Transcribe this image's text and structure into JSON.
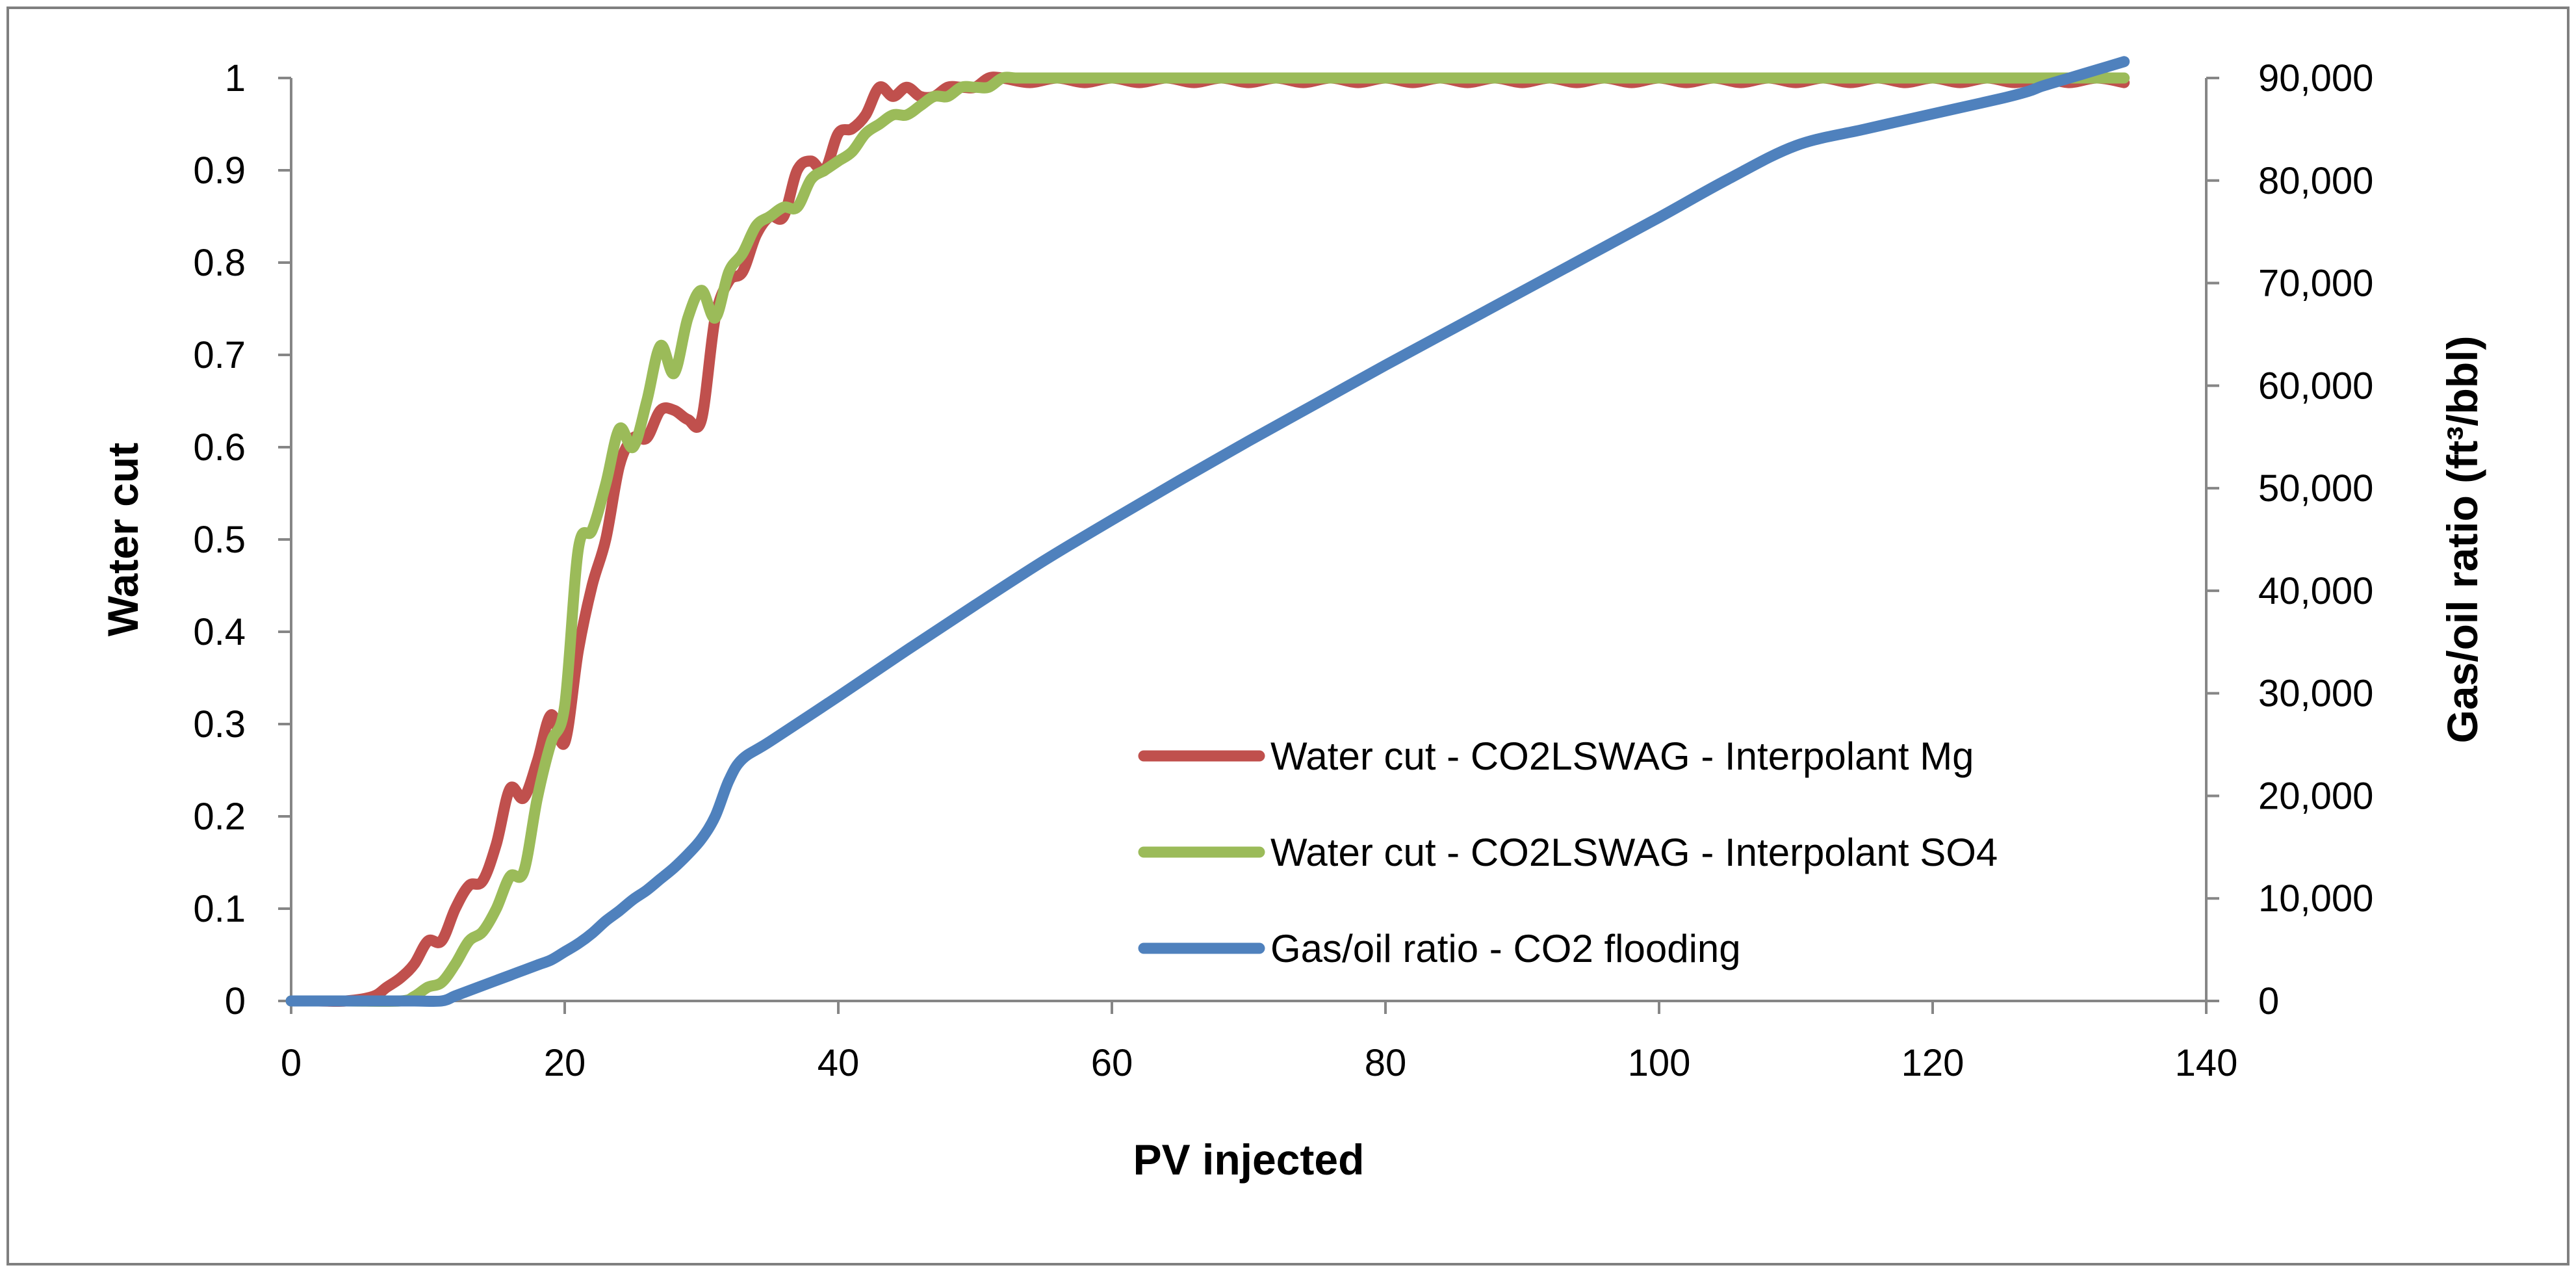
{
  "chart_data": {
    "type": "line",
    "title": "",
    "xlabel": "PV injected",
    "ylabel": "Water cut",
    "y2label": "Gas/oil ratio (ft³/bbl)",
    "xlim": [
      0,
      140
    ],
    "ylim": [
      0,
      1
    ],
    "y2lim": [
      0,
      90000
    ],
    "xticks": [
      "0",
      "20",
      "40",
      "60",
      "80",
      "100",
      "120",
      "140"
    ],
    "yticks": [
      "0",
      "0.1",
      "0.2",
      "0.3",
      "0.4",
      "0.5",
      "0.6",
      "0.7",
      "0.8",
      "0.9",
      "1"
    ],
    "y2ticks": [
      "0",
      "10,000",
      "20,000",
      "30,000",
      "40,000",
      "50,000",
      "60,000",
      "70,000",
      "80,000",
      "90,000"
    ],
    "grid": false,
    "legend_position": "bottom-right",
    "series": [
      {
        "name": "Water cut - CO2LSWAG - Interpolant Mg",
        "color": "#c0504d",
        "axis": "left",
        "x": [
          0,
          2,
          4,
          6,
          7,
          8,
          9,
          10,
          11,
          12,
          13,
          14,
          15,
          16,
          17,
          18,
          19,
          20,
          21,
          22,
          23,
          24,
          25,
          26,
          27,
          28,
          29,
          30,
          31,
          32,
          33,
          34,
          35,
          36,
          37,
          38,
          39,
          40,
          41,
          42,
          43,
          44,
          45,
          46,
          47,
          48,
          49,
          50,
          51,
          52,
          54,
          56,
          58,
          60,
          62,
          64,
          66,
          68,
          70,
          72,
          74,
          76,
          78,
          80,
          82,
          84,
          86,
          88,
          90,
          92,
          94,
          96,
          98,
          100,
          102,
          104,
          106,
          108,
          110,
          112,
          114,
          116,
          118,
          120,
          122,
          124,
          126,
          128,
          130,
          132,
          134
        ],
        "values": [
          0,
          0,
          0,
          0.005,
          0.015,
          0.025,
          0.04,
          0.065,
          0.065,
          0.1,
          0.125,
          0.13,
          0.17,
          0.23,
          0.22,
          0.26,
          0.31,
          0.28,
          0.38,
          0.45,
          0.5,
          0.58,
          0.61,
          0.61,
          0.64,
          0.64,
          0.63,
          0.63,
          0.74,
          0.78,
          0.79,
          0.83,
          0.85,
          0.85,
          0.9,
          0.91,
          0.9,
          0.94,
          0.945,
          0.96,
          0.99,
          0.98,
          0.99,
          0.98,
          0.98,
          0.99,
          0.99,
          0.99,
          1,
          1,
          0.995,
          1,
          0.995,
          1,
          0.995,
          1,
          0.995,
          1,
          0.995,
          1,
          0.995,
          1,
          0.995,
          1,
          0.995,
          1,
          0.995,
          1,
          0.995,
          1,
          0.995,
          1,
          0.995,
          1,
          0.995,
          1,
          0.995,
          1,
          0.995,
          1,
          0.995,
          1,
          0.995,
          1,
          0.995,
          1,
          0.995,
          1,
          0.995,
          1,
          0.995
        ]
      },
      {
        "name": "Water cut - CO2LSWAG - Interpolant SO4",
        "color": "#9bbb59",
        "axis": "left",
        "x": [
          0,
          4,
          8,
          9,
          10,
          11,
          12,
          13,
          14,
          15,
          16,
          17,
          18,
          19,
          20,
          21,
          22,
          23,
          24,
          25,
          26,
          27,
          28,
          29,
          30,
          31,
          32,
          33,
          34,
          35,
          36,
          37,
          38,
          39,
          40,
          41,
          42,
          43,
          44,
          45,
          46,
          47,
          48,
          49,
          50,
          51,
          52,
          53,
          54,
          55,
          60,
          70,
          80,
          90,
          100,
          110,
          120,
          130,
          134
        ],
        "values": [
          0,
          0,
          0,
          0.005,
          0.015,
          0.02,
          0.04,
          0.065,
          0.075,
          0.1,
          0.135,
          0.14,
          0.22,
          0.28,
          0.32,
          0.49,
          0.51,
          0.56,
          0.62,
          0.6,
          0.65,
          0.71,
          0.68,
          0.74,
          0.77,
          0.74,
          0.79,
          0.81,
          0.84,
          0.85,
          0.86,
          0.86,
          0.89,
          0.9,
          0.91,
          0.92,
          0.94,
          0.95,
          0.96,
          0.96,
          0.97,
          0.98,
          0.98,
          0.99,
          0.99,
          0.99,
          1,
          1,
          1,
          1,
          1,
          1,
          1,
          1,
          1,
          1,
          1,
          1,
          1
        ]
      },
      {
        "name": "Gas/oil ratio - CO2 flooding",
        "color": "#4f81bd",
        "axis": "right",
        "x": [
          0,
          3,
          6,
          9,
          11,
          12,
          13,
          14,
          15,
          16,
          17,
          18,
          19,
          20,
          21,
          22,
          23,
          24,
          25,
          26,
          27,
          28,
          29,
          30,
          31,
          32,
          33,
          35,
          40,
          45,
          50,
          55,
          60,
          65,
          70,
          75,
          80,
          85,
          90,
          95,
          100,
          105,
          110,
          115,
          120,
          125,
          127,
          128,
          130,
          132,
          134
        ],
        "values": [
          0,
          0,
          0,
          0,
          0,
          500,
          1000,
          1500,
          2000,
          2500,
          3000,
          3500,
          4000,
          4800,
          5600,
          6600,
          7800,
          8800,
          9900,
          10800,
          11900,
          13000,
          14300,
          15800,
          18000,
          21500,
          23600,
          25300,
          29700,
          34200,
          38600,
          42900,
          46900,
          50800,
          54600,
          58300,
          62000,
          65600,
          69200,
          72800,
          76400,
          80100,
          83400,
          85000,
          86500,
          88000,
          88700,
          89200,
          90000,
          90800,
          91600
        ]
      }
    ]
  }
}
